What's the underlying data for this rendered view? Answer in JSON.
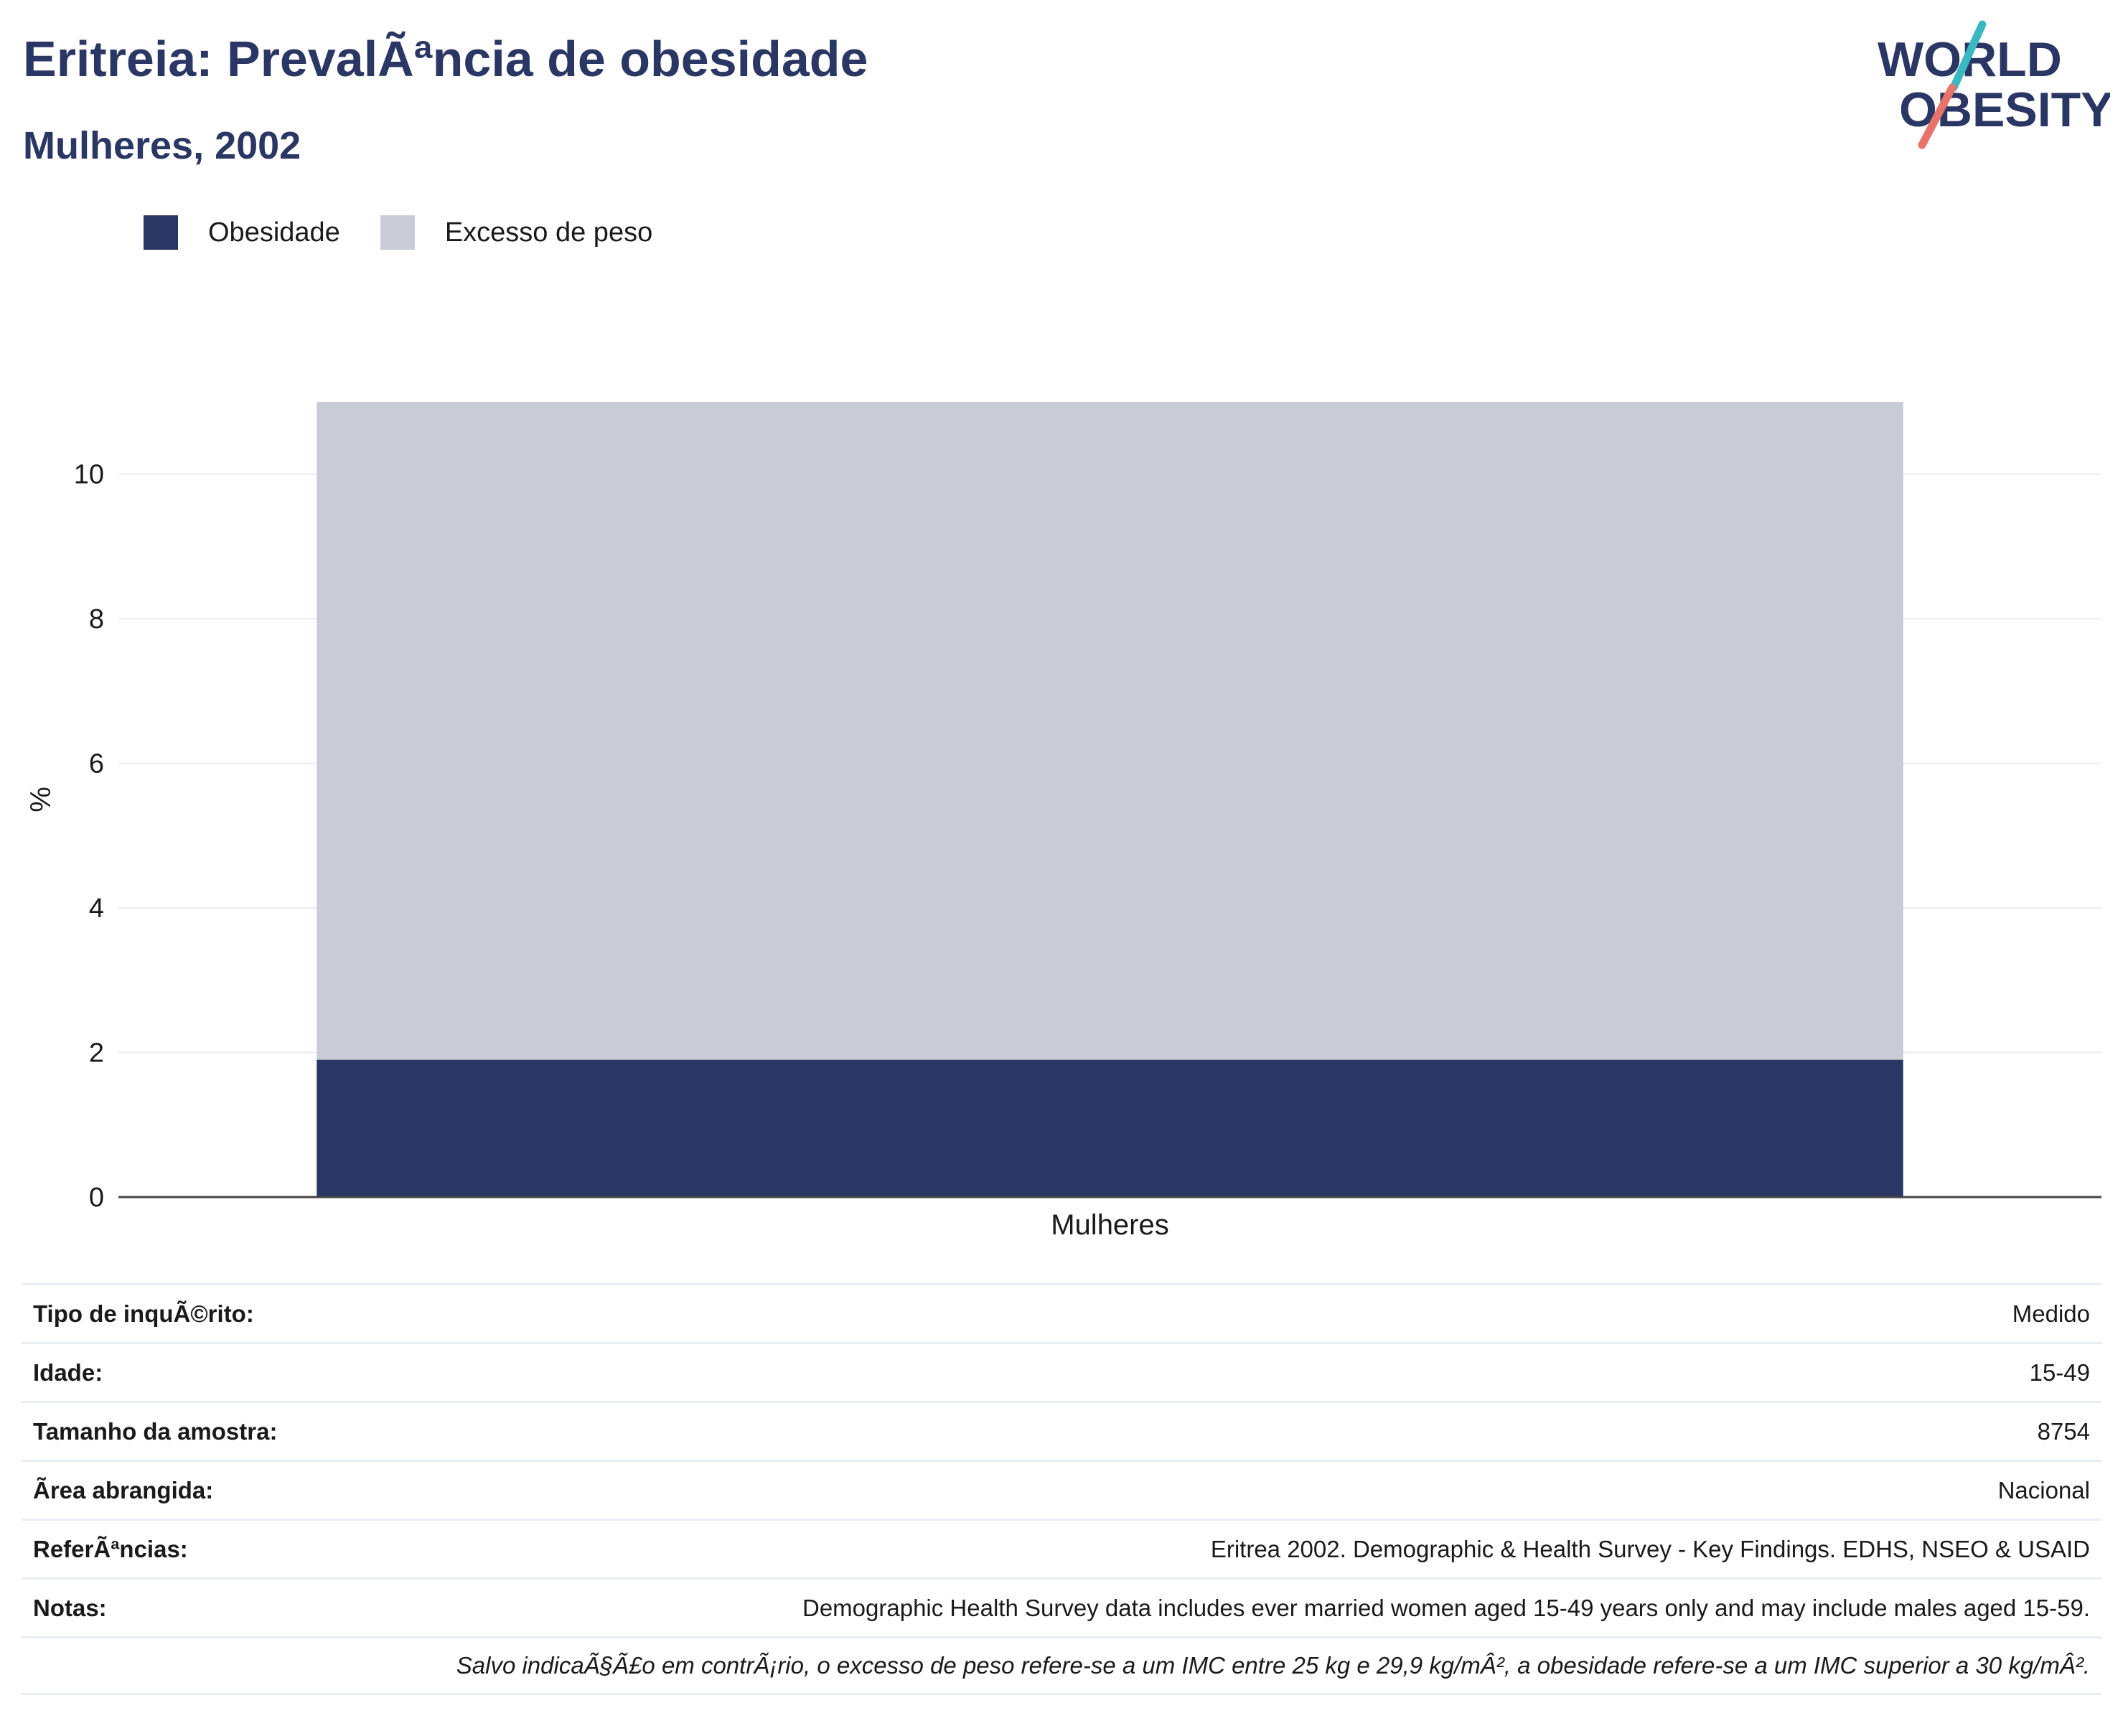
{
  "title": "Eritreia: PrevalÃªncia de obesidade",
  "subtitle": "Mulheres, 2002",
  "logo": {
    "line1": "WORLD",
    "line2": "OBESITY"
  },
  "colors": {
    "obesity": "#2a3663",
    "overweight": "#c9ccd7",
    "title": "#2a3663",
    "accent_teal": "#3ab7bf",
    "accent_coral": "#e8736a"
  },
  "chart_data": {
    "type": "bar",
    "stacked": true,
    "categories": [
      "Mulheres"
    ],
    "series": [
      {
        "name": "Obesidade",
        "values": [
          1.9
        ]
      },
      {
        "name": "Excesso de peso",
        "values": [
          9.1
        ]
      }
    ],
    "ylabel": "%",
    "xlabel": "",
    "ylim": [
      0,
      11
    ],
    "yticks": [
      0,
      2,
      4,
      6,
      8,
      10
    ],
    "grid": true,
    "legend": "top-left"
  },
  "info": {
    "rows": [
      {
        "label": "Tipo de inquÃ©rito:",
        "value": "Medido"
      },
      {
        "label": "Idade:",
        "value": "15-49"
      },
      {
        "label": "Tamanho da amostra:",
        "value": "8754"
      },
      {
        "label": "Ãrea abrangida:",
        "value": "Nacional"
      },
      {
        "label": "ReferÃªncias:",
        "value": "Eritrea 2002. Demographic & Health Survey - Key Findings. EDHS, NSEO & USAID"
      },
      {
        "label": "Notas:",
        "value": "Demographic Health Survey data includes ever married women aged 15-49 years only and may include males aged 15-59."
      }
    ],
    "note": "Salvo indicaÃ§Ã£o em contrÃ¡rio, o excesso de peso refere-se a um IMC entre 25 kg e 29,9 kg/mÂ², a obesidade refere-se a um IMC superior a 30 kg/mÂ²."
  }
}
